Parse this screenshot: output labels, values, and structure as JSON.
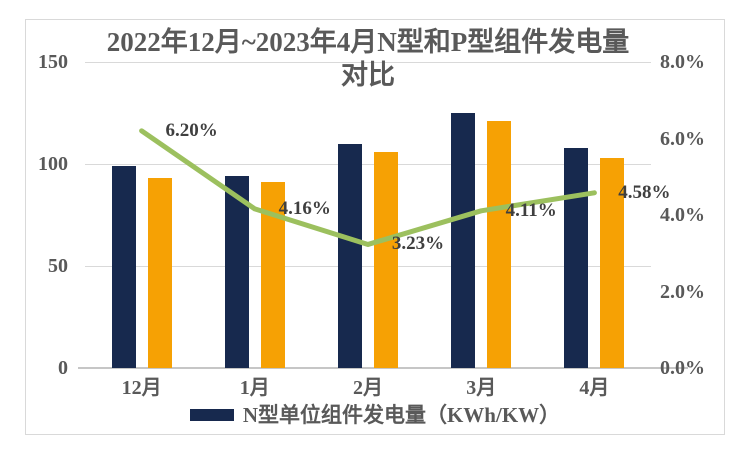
{
  "colors": {
    "n_bar": "#17294e",
    "p_bar": "#f6a104",
    "line": "#9cc05e",
    "grid": "#d9d9d9",
    "axis_line": "#c6c6c6",
    "axis_text": "#595959",
    "data_label": "#3f3f3f",
    "frame_border": "#d9d9d9",
    "background": "#ffffff"
  },
  "chart_data": {
    "type": "bar+line",
    "title_line1": "2022年12月~2023年4月N型和P型组件发电量",
    "title_line2": "对比",
    "categories": [
      "12月",
      "1月",
      "2月",
      "3月",
      "4月"
    ],
    "series": [
      {
        "key": "n-type-bar",
        "name": "N型单位组件发电量（KWh/KW）",
        "type": "bar",
        "axis": "left",
        "values": [
          99,
          94,
          110,
          125,
          108
        ],
        "in_legend": true
      },
      {
        "key": "p-type-bar",
        "type": "bar",
        "axis": "left",
        "values": [
          93,
          91,
          106,
          121,
          103
        ],
        "in_legend": false
      },
      {
        "key": "gain-line",
        "type": "line",
        "axis": "right",
        "values": [
          6.2,
          4.16,
          3.23,
          4.11,
          4.58
        ],
        "point_labels": [
          "6.20%",
          "4.16%",
          "3.23%",
          "4.11%",
          "4.58%"
        ],
        "in_legend": false
      }
    ],
    "left_axis": {
      "min": 0,
      "max": 150,
      "ticks": [
        {
          "value": 150,
          "label": "150"
        },
        {
          "value": 100,
          "label": "100"
        },
        {
          "value": 50,
          "label": "50"
        },
        {
          "value": 0,
          "label": "0"
        }
      ]
    },
    "right_axis": {
      "min": 0,
      "max": 8,
      "ticks": [
        {
          "value": 8,
          "label": "8.0%"
        },
        {
          "value": 6,
          "label": "6.0%"
        },
        {
          "value": 4,
          "label": "4.0%"
        },
        {
          "value": 2,
          "label": "2.0%"
        },
        {
          "value": 0,
          "label": "0.0%"
        }
      ]
    },
    "grid": true,
    "legend_position": "bottom"
  }
}
